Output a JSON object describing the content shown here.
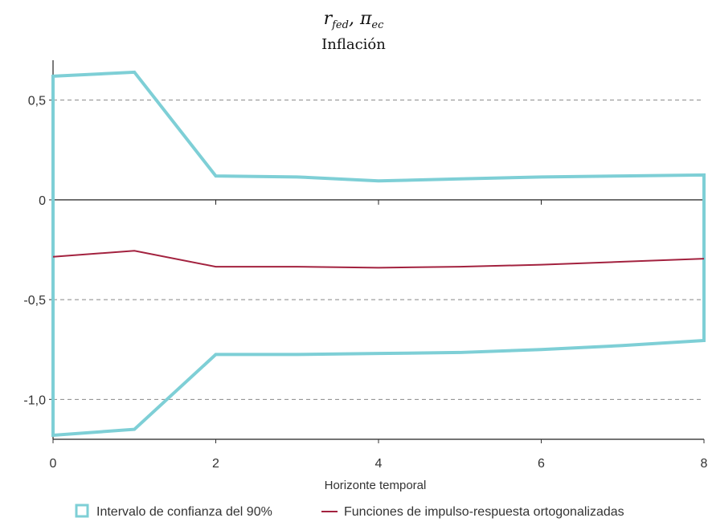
{
  "chart_data": {
    "type": "line",
    "title_parts": {
      "r": "r",
      "r_sub": "fed",
      "sep": ", ",
      "pi": "π",
      "pi_sub": "ec"
    },
    "subtitle": "Inflación",
    "xlabel": "Horizonte temporal",
    "ylabel": "",
    "x": [
      0,
      1,
      2,
      3,
      4,
      5,
      6,
      7,
      8
    ],
    "xlim": [
      0,
      8
    ],
    "ylim": [
      -1.2,
      0.7
    ],
    "x_ticks": [
      0,
      2,
      4,
      6,
      8
    ],
    "x_tick_labels": [
      "0",
      "2",
      "4",
      "6",
      "8"
    ],
    "y_ticks": [
      0.5,
      0,
      -0.5,
      -1.0
    ],
    "y_tick_labels": [
      "0,5",
      "0",
      "-0,5",
      "-1,0"
    ],
    "grid": "horizontal dashed",
    "legend_position": "bottom",
    "series": [
      {
        "name": "Intervalo de confianza del 90%",
        "kind": "band",
        "color": "#7ecfd6",
        "upper": [
          0.62,
          0.64,
          0.12,
          0.115,
          0.095,
          0.105,
          0.115,
          0.12,
          0.125
        ],
        "lower": [
          -1.18,
          -1.15,
          -0.775,
          -0.775,
          -0.77,
          -0.765,
          -0.75,
          -0.73,
          -0.705
        ]
      },
      {
        "name": "Funciones de impulso-respuesta ortogonalizadas",
        "kind": "line",
        "color": "#a3223f",
        "values": [
          -0.285,
          -0.255,
          -0.335,
          -0.335,
          -0.34,
          -0.335,
          -0.325,
          -0.31,
          -0.295
        ]
      }
    ]
  }
}
